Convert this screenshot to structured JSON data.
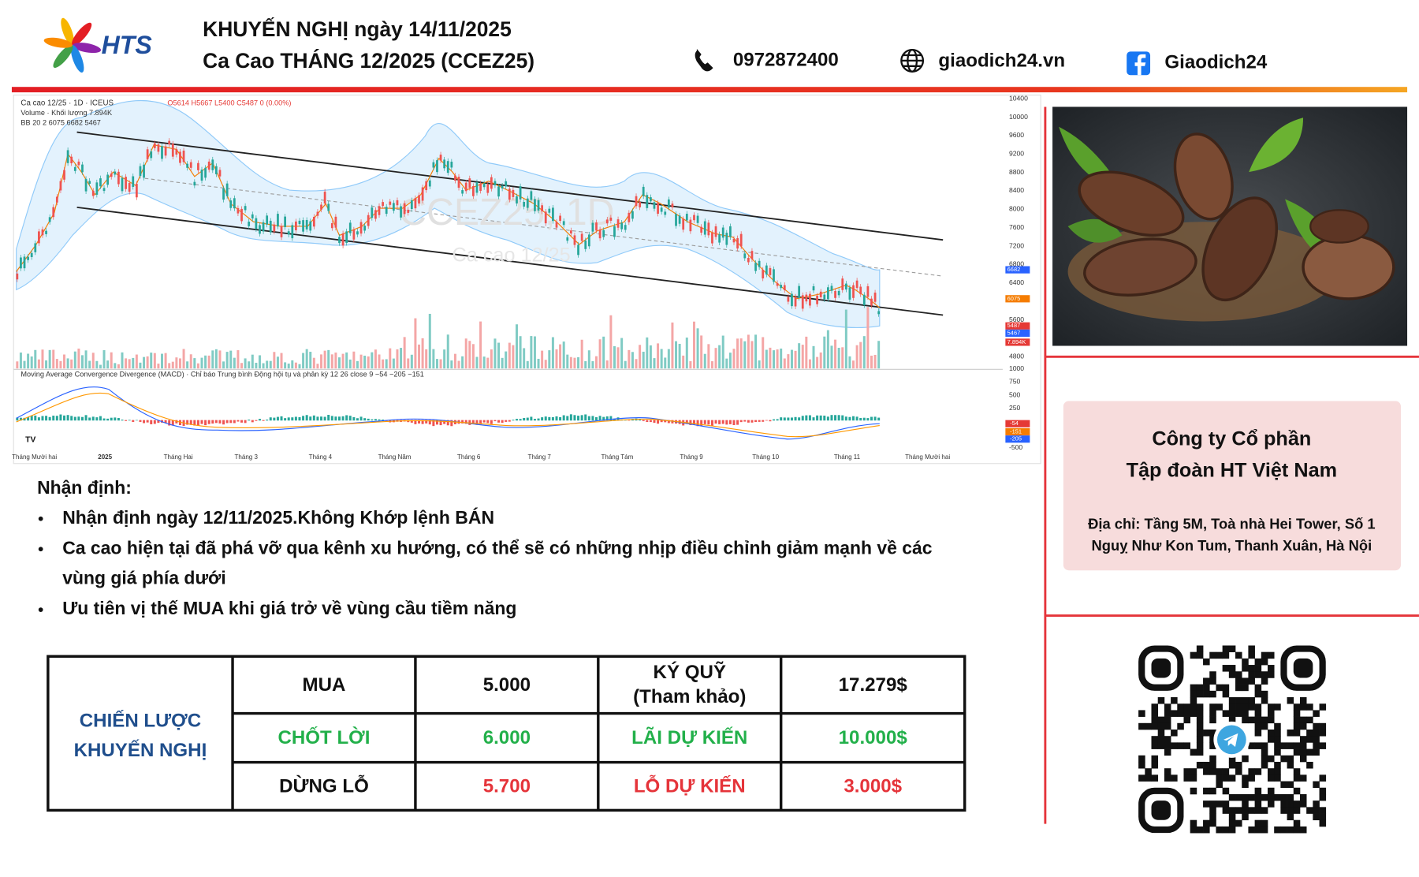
{
  "header": {
    "logo_text": "HTS",
    "title_line1": "KHUYẾN NGHỊ ngày 14/11/2025",
    "title_line2": "Ca Cao THÁNG 12/2025 (CCEZ25)",
    "phone": "0972872400",
    "website": "giaodich24.vn",
    "facebook": "Giaodich24"
  },
  "chart": {
    "symbol_line": "Ca cao 12/25 · 1D · ICEUS",
    "ohlc_line": "O5614 H5667 L5400 C5487 0 (0.00%)",
    "volume_line": "Volume · Khối lượng 7.894K",
    "bb_line": "BB 20 2 6075 6682 5467",
    "watermark": "CCEZ25, 1D",
    "watermark_sub": "Ca cao 12/25",
    "macd_line": "Moving Average Convergence Divergence (MACD) · Chỉ báo Trung bình Động hội tụ và phân kỳ 12 26 close 9 −54 −205 −151",
    "price_ticks": [
      10400,
      10000,
      9600,
      9200,
      8800,
      8400,
      8000,
      7600,
      7200,
      6800,
      6400,
      5600,
      4800
    ],
    "price_tags": [
      {
        "label": "6682",
        "color": "#2962ff"
      },
      {
        "label": "6075",
        "color": "#f57c00"
      },
      {
        "label": "5487",
        "color": "#e53935"
      },
      {
        "label": "5467",
        "color": "#2962ff"
      },
      {
        "label": "7.894K",
        "color": "#e53935"
      }
    ],
    "macd_ticks": [
      1000,
      750,
      500,
      250,
      -500
    ],
    "macd_tags": [
      {
        "label": "-54",
        "color": "#e53935"
      },
      {
        "label": "-151",
        "color": "#f57c00"
      },
      {
        "label": "-205",
        "color": "#2962ff"
      }
    ],
    "months": [
      "Tháng Mười hai",
      "2025",
      "Tháng Hai",
      "Tháng 3",
      "Tháng 4",
      "Tháng Năm",
      "Tháng 6",
      "Tháng 7",
      "Tháng Tám",
      "Tháng 9",
      "Tháng 10",
      "Tháng 11",
      "Tháng Mười hai"
    ]
  },
  "analysis": {
    "heading": "Nhận định:",
    "bullets": [
      [
        "Nhận định ngày 12/11/2025.Không  Khớp lệnh BÁN"
      ],
      [
        "Ca cao hiện tại đã phá vỡ qua kênh xu hướng, có thể sẽ có những nhịp điều chỉnh giảm mạnh về các",
        "vùng giá phía dưới"
      ],
      [
        "Ưu tiên vị thế MUA khi giá trở về vùng cầu tiềm năng"
      ]
    ]
  },
  "table": {
    "label": [
      "CHIẾN LƯỢC",
      "KHUYẾN NGHỊ"
    ],
    "label_color": "#1f4e8c",
    "rows": [
      {
        "colors": [
          "#111111",
          "#111111",
          "#111111",
          "#111111"
        ],
        "cells": [
          "MUA",
          "5.000",
          [
            "KÝ QUỸ",
            "(Tham khảo)"
          ],
          "17.279$"
        ]
      },
      {
        "colors": [
          "#22b04a",
          "#22b04a",
          "#22b04a",
          "#22b04a"
        ],
        "cells": [
          "CHỐT LỜI",
          "6.000",
          "LÃI DỰ KIẾN",
          "10.000$"
        ]
      },
      {
        "colors": [
          "#111111",
          "#e5343a",
          "#e5343a",
          "#e5343a"
        ],
        "cells": [
          "DỪNG LỖ",
          "5.700",
          "LỖ DỰ KIẾN",
          "3.000$"
        ]
      }
    ]
  },
  "company": {
    "name_line1": "Công ty Cổ phần",
    "name_line2": "Tập đoàn HT Việt Nam",
    "address_line1": "Địa chỉ: Tầng 5M, Toà nhà Hei Tower, Số 1",
    "address_line2": "Nguỵ Như Kon Tum, Thanh Xuân, Hà Nội"
  }
}
